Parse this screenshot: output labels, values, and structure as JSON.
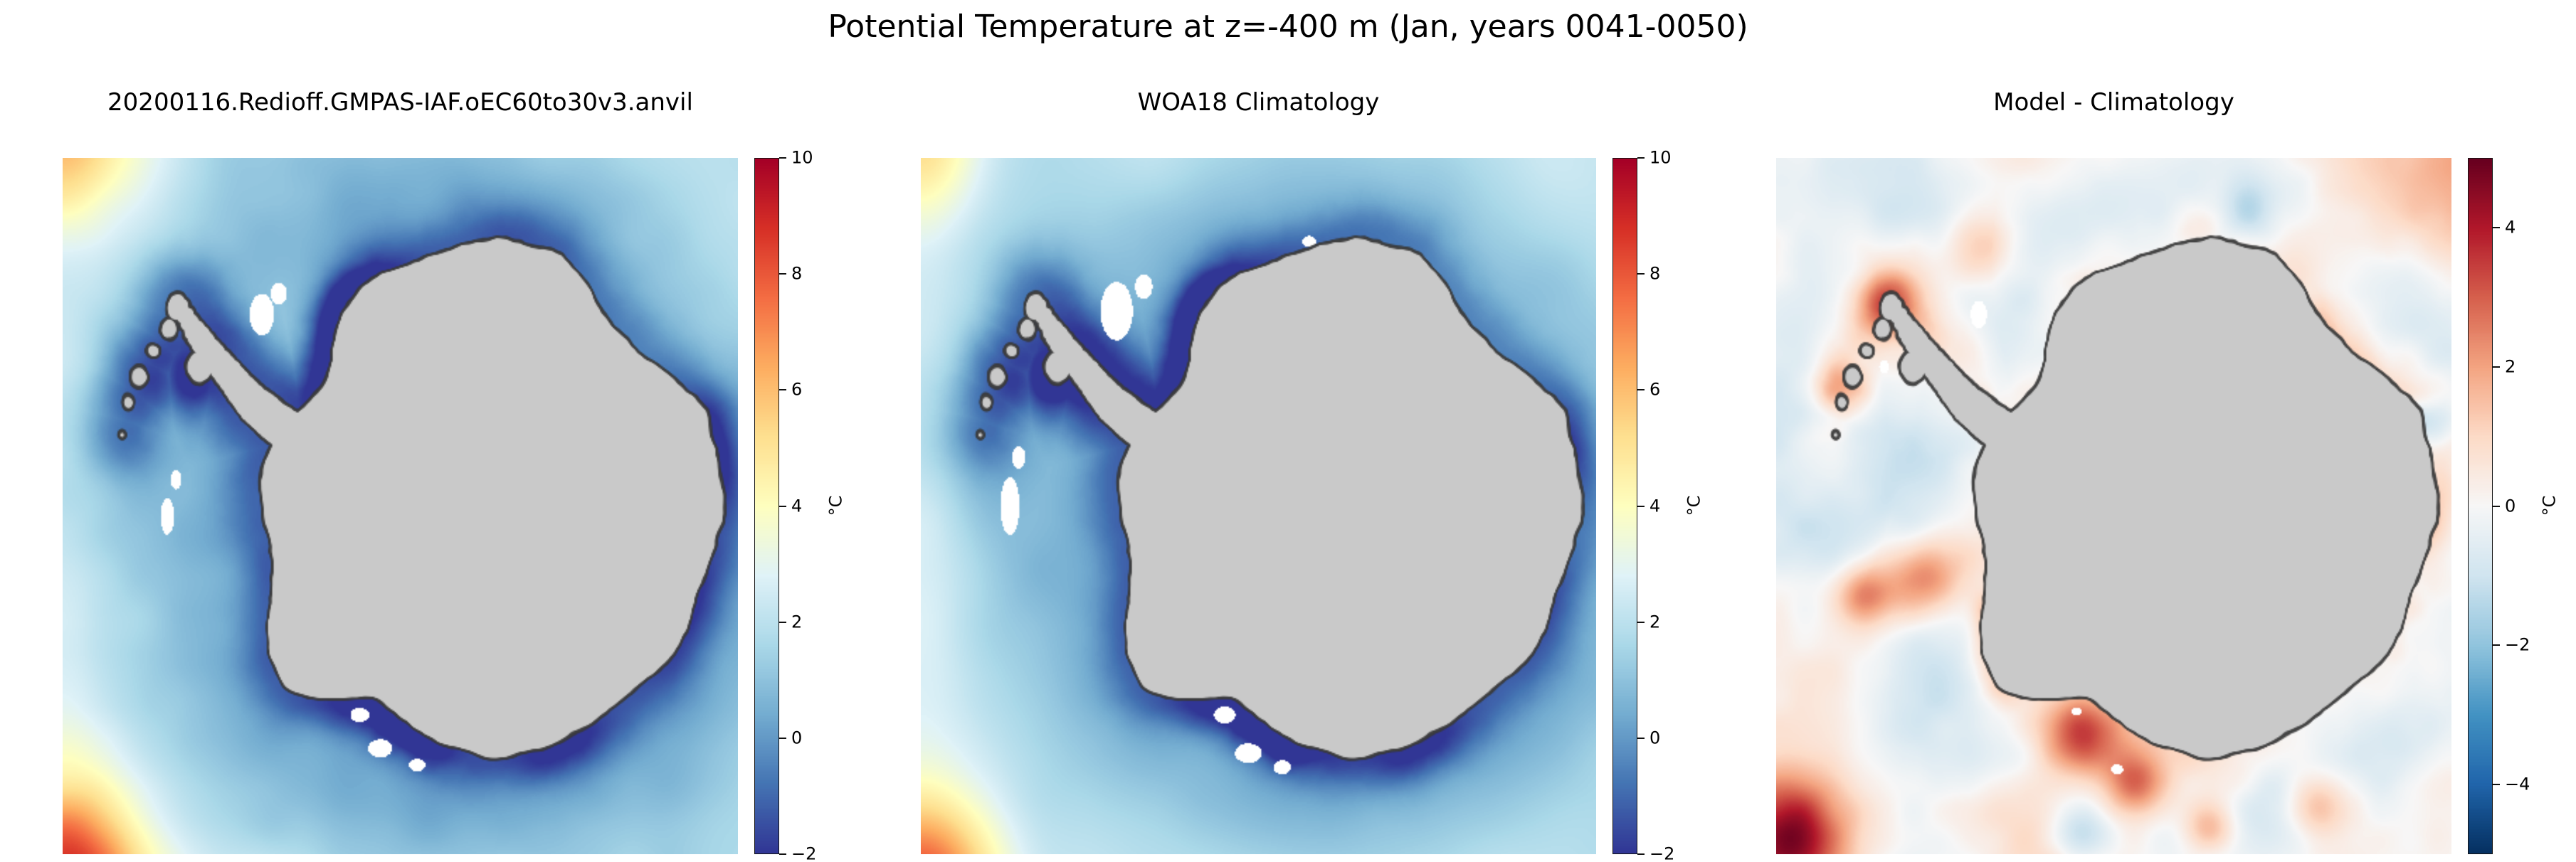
{
  "figure": {
    "title": "Potential Temperature at z=-400 m (Jan, years 0041-0050)"
  },
  "chart_data": {
    "type": "heatmap",
    "title": "Potential Temperature at z=-400 m (Jan, years 0041-0050)",
    "layout": "1x3 south-polar maps of the Southern Ocean around Antarctica, each with a vertical colorbar on its right; continent masked light gray; white patches indicate missing data (ice-shelf cavities)",
    "panels": [
      {
        "title": "20200116.Redioff.GMPAS-IAF.oEC60to30v3.anvil",
        "kind": "model field",
        "colormap": "RdYlBu_r",
        "units": "°C",
        "colorbar": {
          "min": -2,
          "max": 10,
          "ticks": [
            -2,
            0,
            2,
            4,
            6,
            8,
            10
          ],
          "label": "°C"
        },
        "features": "Ocean mostly 0-2 C (light blue); water below -1 C hugging the coast, darkest in the Weddell and Ross seas; warm water 6-9 C in the far lower-left corner and ~4-5 C in the upper-left corner; gray continent; small white no-data patches near the coast."
      },
      {
        "title": "WOA18 Climatology",
        "kind": "observed climatology",
        "colormap": "RdYlBu_r",
        "units": "°C",
        "colorbar": {
          "min": -2,
          "max": 10,
          "ticks": [
            -2,
            0,
            2,
            4,
            6,
            8,
            10
          ],
          "label": "°C"
        },
        "features": "Same field from WOA18 observations; smoother than the model; similar cold coastal band and warm lower-left corner; larger white no-data patches along the ice shelves."
      },
      {
        "title": "Model - Climatology",
        "kind": "difference",
        "colormap": "RdBu_r",
        "units": "°C",
        "colorbar": {
          "min": -5,
          "max": 5,
          "ticks": [
            -4,
            -2,
            0,
            2,
            4
          ],
          "label": "°C"
        },
        "features": "Difference mostly within +/-1 C (pale); warm bias up to +4 C in the Ross Sea, along the Amundsen coast, near the Antarctic Peninsula and in the lower-left corner; scattered small cold biases near the East Antarctic coast and a faint cool halo offshore."
      }
    ]
  }
}
